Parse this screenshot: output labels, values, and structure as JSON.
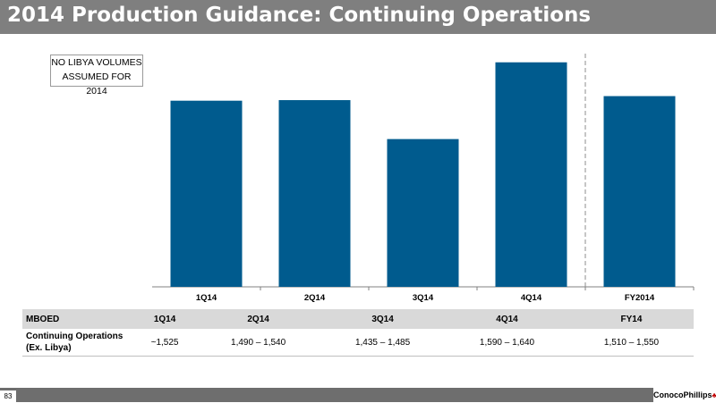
{
  "header": {
    "title": "2014 Production Guidance: Continuing Operations"
  },
  "note": {
    "line1": "NO LIBYA VOLUMES",
    "line2": "ASSUMED FOR 2014"
  },
  "chart_data": {
    "type": "bar",
    "categories": [
      "1Q14",
      "2Q14",
      "3Q14",
      "4Q14",
      "FY2014"
    ],
    "values": [
      1525,
      1526,
      1458,
      1592,
      1533
    ],
    "title": "",
    "xlabel": "",
    "ylabel": "",
    "ylim": [
      1200,
      1615
    ],
    "grid": false,
    "legend": "none",
    "bar_color": "#005b8e",
    "divider_before_category": 4
  },
  "table": {
    "headers": [
      "MBOED",
      "1Q14",
      "2Q14",
      "3Q14",
      "4Q14",
      "FY14"
    ],
    "row_label_line1": "Continuing Operations",
    "row_label_line2": "(Ex. Libya)",
    "values": [
      "~1,525",
      "1,490 – 1,540",
      "1,435 – 1,485",
      "1,590 – 1,640",
      "1,510 – 1,550"
    ]
  },
  "footer": {
    "page": "83",
    "logo_text": "ConocoPhillips"
  },
  "colors": {
    "title_bar": "#7f7f7f",
    "table_header": "#d9d9d9",
    "footer_bar": "#6e6e6e"
  }
}
